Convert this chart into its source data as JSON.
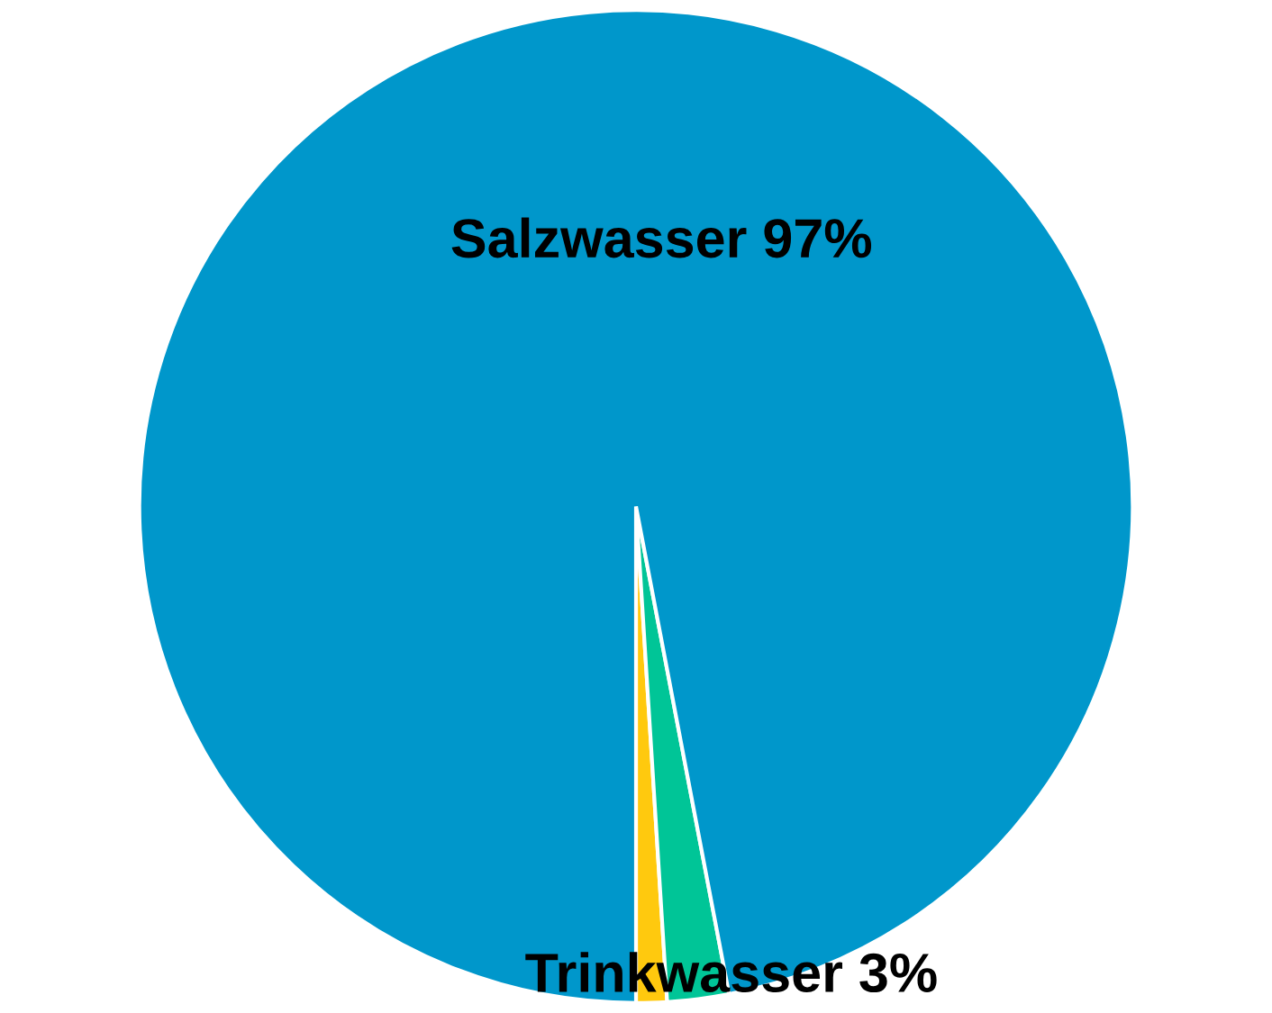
{
  "chart_data": {
    "type": "pie",
    "categories": [
      null,
      null,
      null
    ],
    "values": [
      1,
      2,
      97
    ],
    "colors": [
      "#ffc90e",
      "#00c597",
      "#0097cb"
    ],
    "annotations": [
      {
        "text": "Salzwasser 97%"
      },
      {
        "text": "Trinkwasser 3%"
      }
    ]
  }
}
